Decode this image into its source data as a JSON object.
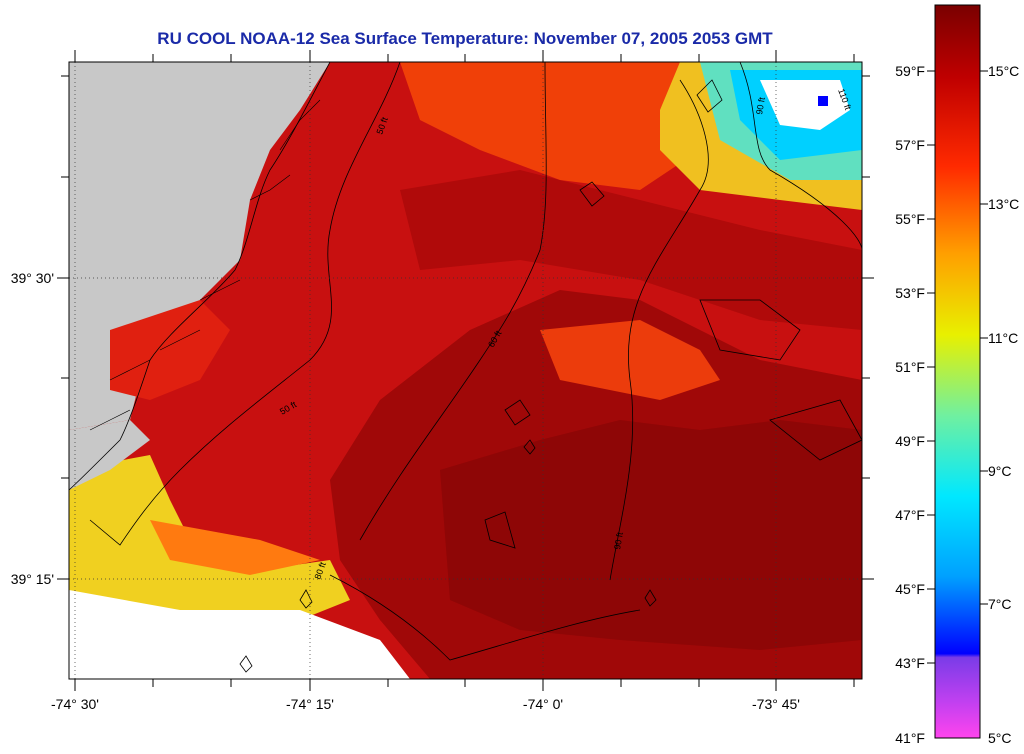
{
  "title": "RU COOL  NOAA-12  Sea Surface Temperature:  November 07, 2005 2053 GMT",
  "map": {
    "lon_labels": [
      "-74° 30'",
      "-74° 15'",
      "-74° 0'",
      "-73° 45'"
    ],
    "lat_labels": [
      "39° 30'",
      "39° 15'"
    ],
    "depth_contours": [
      "50 ft",
      "60 ft",
      "80 ft",
      "90 ft",
      "110 ft"
    ],
    "colors": {
      "land": "#c8c8c8",
      "no_data": "#ffffff",
      "contour": "#000000"
    }
  },
  "colorbar": {
    "fahrenheit_labels": [
      "59°F",
      "57°F",
      "55°F",
      "53°F",
      "51°F",
      "49°F",
      "47°F",
      "45°F",
      "43°F",
      "41°F"
    ],
    "celsius_labels": [
      "15°C",
      "13°C",
      "11°C",
      "9°C",
      "7°C",
      "5°C"
    ],
    "scale_colors": [
      "#ff44ee",
      "#8a3cf0",
      "#0000ff",
      "#00d8ff",
      "#70f080",
      "#f0f000",
      "#ff9000",
      "#ff2000",
      "#8a0000"
    ]
  }
}
